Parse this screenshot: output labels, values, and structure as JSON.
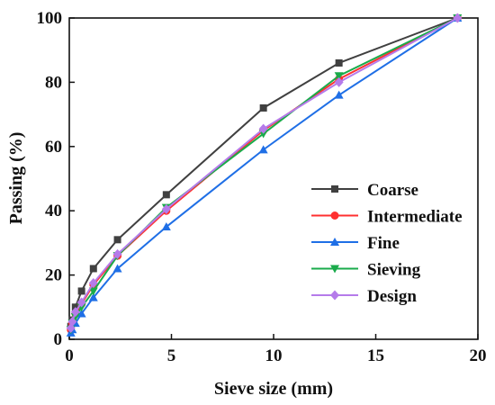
{
  "chart_data": {
    "type": "line",
    "xlabel": "Sieve size (mm)",
    "ylabel": "Passing (%)",
    "xlim": [
      0,
      20
    ],
    "ylim": [
      0,
      100
    ],
    "xticks": [
      0,
      5,
      10,
      15,
      20
    ],
    "yticks": [
      0,
      20,
      40,
      60,
      80,
      100
    ],
    "grid": false,
    "legend_position": "lower-right",
    "x": [
      0.075,
      0.15,
      0.3,
      0.6,
      1.18,
      2.36,
      4.75,
      9.5,
      13.2,
      19
    ],
    "series": [
      {
        "name": "Coarse",
        "color": "#404040",
        "marker": "square",
        "values": [
          4,
          6,
          10,
          15,
          22,
          31,
          45,
          72,
          86,
          100
        ]
      },
      {
        "name": "Intermediate",
        "color": "#ff3030",
        "marker": "circle",
        "values": [
          3,
          5,
          8,
          11,
          17,
          26,
          40,
          65,
          81,
          100
        ]
      },
      {
        "name": "Fine",
        "color": "#1f6fe6",
        "marker": "triangle-up",
        "values": [
          2,
          3,
          5,
          8,
          13,
          22,
          35,
          59,
          76,
          100
        ]
      },
      {
        "name": "Sieving",
        "color": "#1aab4b",
        "marker": "triangle-down",
        "values": [
          3,
          5,
          7,
          10,
          15,
          26,
          41,
          64,
          82,
          100
        ]
      },
      {
        "name": "Design",
        "color": "#b57bea",
        "marker": "diamond",
        "values": [
          3.5,
          5.5,
          8.5,
          11.5,
          17.5,
          26.5,
          40.5,
          65.5,
          80,
          100
        ]
      }
    ]
  }
}
